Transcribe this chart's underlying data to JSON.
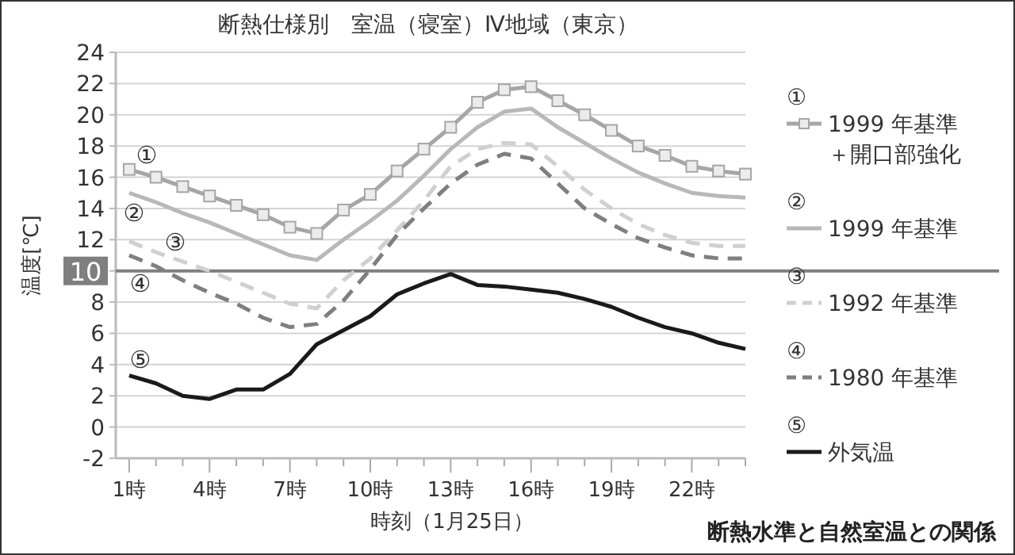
{
  "chart_data": {
    "type": "line",
    "title": "断熱仕様別　室温（寝室）Ⅳ地域（東京）",
    "xlabel": "時刻（1月25日）",
    "ylabel": "温度[℃]",
    "x": [
      1,
      2,
      3,
      4,
      5,
      6,
      7,
      8,
      9,
      10,
      11,
      12,
      13,
      14,
      15,
      16,
      17,
      18,
      19,
      20,
      21,
      22,
      23,
      24
    ],
    "series": [
      {
        "name": "①\n1999 年基準＋開口部強化",
        "color": "#a6a6a6",
        "marker": "square",
        "line_style": "solid",
        "values": [
          16.5,
          16.0,
          15.4,
          14.8,
          14.2,
          13.6,
          12.8,
          12.4,
          13.9,
          14.9,
          16.4,
          17.8,
          19.2,
          20.8,
          21.6,
          21.8,
          20.9,
          20.0,
          19.0,
          18.0,
          17.4,
          16.7,
          16.4,
          16.2
        ]
      },
      {
        "name": "②\n1999 年基準",
        "color": "#b8b8b8",
        "line_style": "solid",
        "values": [
          15.0,
          14.4,
          13.7,
          13.1,
          12.4,
          11.7,
          11.0,
          10.7,
          12.0,
          13.2,
          14.5,
          16.1,
          17.8,
          19.2,
          20.2,
          20.4,
          19.2,
          18.2,
          17.2,
          16.3,
          15.6,
          15.0,
          14.8,
          14.7
        ]
      },
      {
        "name": "③\n1992 年基準",
        "color": "#d0d0d0",
        "line_style": "dashed",
        "values": [
          11.9,
          11.2,
          10.6,
          10.0,
          9.3,
          8.6,
          7.9,
          7.6,
          9.4,
          10.8,
          12.6,
          14.5,
          16.7,
          17.8,
          18.2,
          18.1,
          16.7,
          15.2,
          14.0,
          13.0,
          12.3,
          11.8,
          11.6,
          11.6
        ]
      },
      {
        "name": "④\n1980 年基準",
        "color": "#7f7f7f",
        "line_style": "dashed",
        "values": [
          11.0,
          10.3,
          9.4,
          8.6,
          7.9,
          7.0,
          6.4,
          6.6,
          8.1,
          10.1,
          12.3,
          14.0,
          15.6,
          16.8,
          17.5,
          17.2,
          15.6,
          14.0,
          13.0,
          12.1,
          11.5,
          11.0,
          10.8,
          10.8
        ]
      },
      {
        "name": "⑤\n外気温",
        "color": "#1a1a1a",
        "line_style": "solid",
        "values": [
          3.3,
          2.8,
          2.0,
          1.8,
          2.4,
          2.4,
          3.4,
          5.3,
          6.2,
          7.1,
          8.5,
          9.2,
          9.8,
          9.1,
          9.0,
          8.8,
          8.6,
          8.2,
          7.7,
          7.0,
          6.4,
          6.0,
          5.4,
          5.0
        ]
      }
    ],
    "xlim": [
      0.5,
      24
    ],
    "xticks": [
      {
        "value": 1,
        "label": "1時"
      },
      {
        "value": 2,
        "label": null
      },
      {
        "value": 3,
        "label": null
      },
      {
        "value": 4,
        "label": "4時"
      },
      {
        "value": 5,
        "label": null
      },
      {
        "value": 6,
        "label": null
      },
      {
        "value": 7,
        "label": "7時"
      },
      {
        "value": 8,
        "label": null
      },
      {
        "value": 9,
        "label": null
      },
      {
        "value": 10,
        "label": "10時"
      },
      {
        "value": 11,
        "label": null
      },
      {
        "value": 12,
        "label": null
      },
      {
        "value": 13,
        "label": "13時"
      },
      {
        "value": 14,
        "label": null
      },
      {
        "value": 15,
        "label": null
      },
      {
        "value": 16,
        "label": "16時"
      },
      {
        "value": 17,
        "label": null
      },
      {
        "value": 18,
        "label": null
      },
      {
        "value": 19,
        "label": "19時"
      },
      {
        "value": 20,
        "label": null
      },
      {
        "value": 21,
        "label": null
      },
      {
        "value": 22,
        "label": "22時"
      },
      {
        "value": 23,
        "label": null
      },
      {
        "value": 24,
        "label": null
      }
    ],
    "ylim": [
      -2,
      24
    ],
    "yticks": [
      -2,
      0,
      2,
      4,
      6,
      8,
      10,
      12,
      14,
      16,
      18,
      20,
      22,
      24
    ],
    "grid": "y",
    "legend": "right",
    "ref_lines": [
      {
        "axis": "y",
        "value": 10,
        "color": "#7f7f7f"
      }
    ],
    "annotations": [
      "①",
      "②",
      "③",
      "④",
      "⑤",
      "断熱水準と自然室温との関係"
    ]
  }
}
